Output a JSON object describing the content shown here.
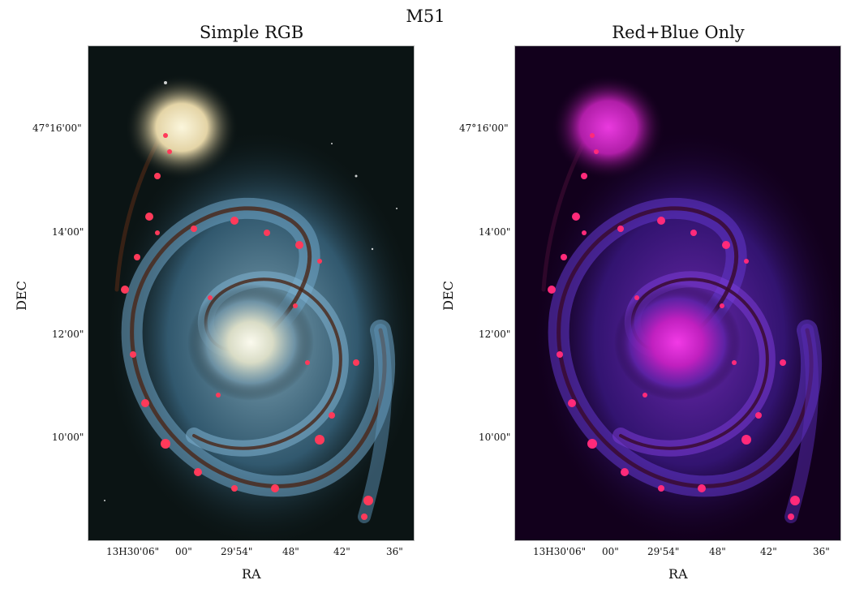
{
  "figure": {
    "title": "M51",
    "panels": [
      {
        "title": "Simple RGB",
        "xlabel": "RA",
        "ylabel": "DEC",
        "image_description_name": "whirlpool-galaxy-rgb-image",
        "palette": {
          "background": "#0b1414",
          "arm": "#5d93b7",
          "core": "#f6f4e0",
          "hii": "#ff3a5a",
          "dust": "#5b2e1a",
          "companion": "#e8dcb0"
        }
      },
      {
        "title": "Red+Blue Only",
        "xlabel": "RA",
        "ylabel": "DEC",
        "image_description_name": "whirlpool-galaxy-red-blue-image",
        "palette": {
          "background": "#12001c",
          "arm": "#5a2bb8",
          "core": "#e22ed8",
          "hii": "#ff2a7a",
          "dust": "#3a0a30",
          "companion": "#d63bd0"
        }
      }
    ],
    "yticks": [
      "47°16'00\"",
      "14'00\"",
      "12'00\"",
      "10'00\""
    ],
    "xticks": [
      "13H30'06\"",
      "00\"",
      "29'54\"",
      "48\"",
      "42\"",
      "36\""
    ]
  }
}
